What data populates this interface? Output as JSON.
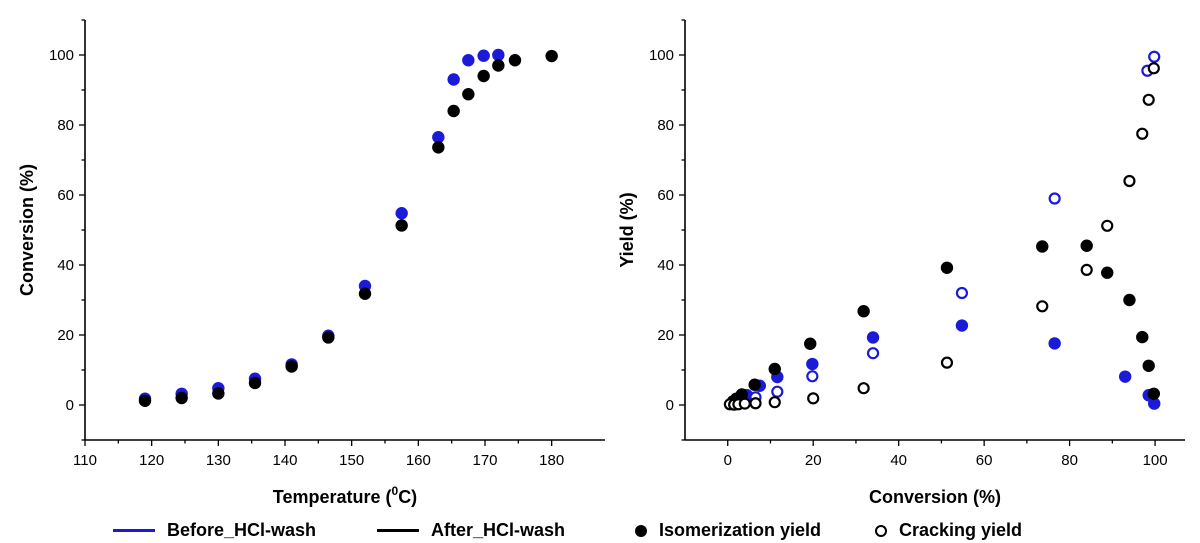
{
  "colors": {
    "before": "#1a1ad8",
    "after": "#000000"
  },
  "chart_data": [
    {
      "type": "scatter",
      "xlabel": "Temperature (",
      "xlabel_sup": "0",
      "xlabel_suffix": "C)",
      "ylabel": "Conversion (%)",
      "xlim": [
        110,
        188
      ],
      "ylim": [
        -10,
        110
      ],
      "xticks": [
        110,
        120,
        130,
        140,
        150,
        160,
        170,
        180
      ],
      "yticks": [
        0,
        20,
        40,
        60,
        80,
        100
      ],
      "series": [
        {
          "name": "Before_HCl-wash",
          "marker": "filled",
          "x": [
            119,
            124.5,
            130,
            135.5,
            141,
            146.5,
            152,
            157.5,
            163,
            165.3,
            167.5,
            169.8,
            172
          ],
          "y": [
            1.8,
            3.2,
            4.8,
            7.5,
            11.6,
            19.8,
            34,
            54.8,
            76.5,
            93,
            98.5,
            99.8,
            100
          ]
        },
        {
          "name": "After_HCl-wash",
          "marker": "filled",
          "x": [
            119,
            124.5,
            130,
            135.5,
            141,
            146.5,
            152,
            157.5,
            163,
            165.3,
            167.5,
            169.8,
            172,
            174.5,
            180
          ],
          "y": [
            1.2,
            2.0,
            3.3,
            6.3,
            11.0,
            19.3,
            31.8,
            51.3,
            73.6,
            84,
            88.8,
            94,
            97,
            98.5,
            99.7
          ]
        }
      ]
    },
    {
      "type": "scatter",
      "xlabel": "Conversion (%)",
      "ylabel": "Yield (%)",
      "xlim": [
        -10,
        107
      ],
      "ylim": [
        -10,
        110
      ],
      "xticks": [
        0,
        20,
        40,
        60,
        80,
        100
      ],
      "yticks": [
        0,
        20,
        40,
        60,
        80,
        100
      ],
      "series": [
        {
          "name": "Before_HCl-wash",
          "marker": "filled",
          "x": [
            2.5,
            4.5,
            7.5,
            11.6,
            19.8,
            34,
            54.8,
            76.5,
            93,
            98.5,
            99.8
          ],
          "y": [
            1.5,
            2.8,
            5.5,
            8,
            11.7,
            19.3,
            22.7,
            17.6,
            8.1,
            2.8,
            0.4
          ]
        },
        {
          "name": "Before_HCl-wash",
          "marker": "open",
          "x": [
            3.2,
            6.5,
            11.6,
            19.8,
            34,
            54.8,
            76.5,
            98.2,
            99.8
          ],
          "y": [
            0.8,
            2.2,
            3.8,
            8.2,
            14.8,
            32,
            59,
            95.5,
            99.5
          ]
        },
        {
          "name": "After_HCl-wash",
          "marker": "filled",
          "x": [
            1.2,
            2.0,
            3.3,
            6.3,
            11.0,
            19.3,
            31.8,
            51.3,
            73.6,
            84,
            88.8,
            94,
            97,
            98.5,
            99.7
          ],
          "y": [
            1.0,
            1.8,
            3.0,
            5.8,
            10.3,
            17.5,
            26.8,
            39.2,
            45.3,
            45.5,
            37.8,
            30,
            19.4,
            11.2,
            3.2
          ]
        },
        {
          "name": "After_HCl-wash",
          "marker": "open",
          "x": [
            0.5,
            1.5,
            2.5,
            4,
            6.5,
            11,
            20,
            31.8,
            51.3,
            73.6,
            84,
            88.8,
            94,
            97,
            98.5,
            99.7
          ],
          "y": [
            0.2,
            0.1,
            0.2,
            0.4,
            0.5,
            0.8,
            1.9,
            4.8,
            12.1,
            28.2,
            38.6,
            51.2,
            64,
            77.5,
            87.2,
            96.2
          ]
        }
      ]
    }
  ],
  "legend": {
    "before": "Before_HCl-wash",
    "after": "After_HCl-wash",
    "filled": "Isomerization yield",
    "open": "Cracking yield"
  }
}
